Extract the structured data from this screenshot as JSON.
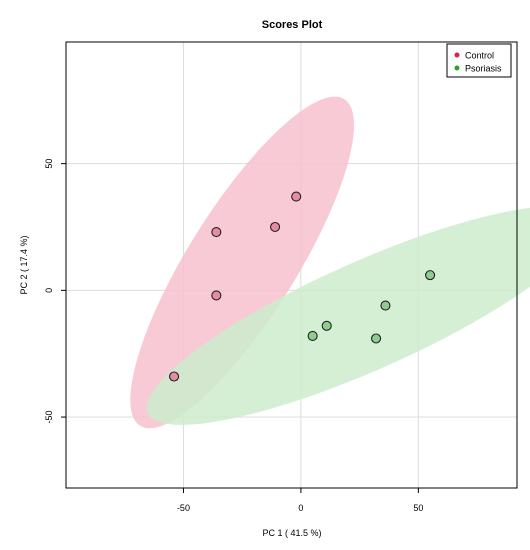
{
  "chart_data": {
    "type": "scatter",
    "title": "Scores Plot",
    "xlabel": "PC 1 ( 41.5 %)",
    "ylabel": "PC 2 ( 17.4 %)",
    "xlim": [
      -100,
      92
    ],
    "ylim": [
      -78,
      98
    ],
    "x_ticks": [
      -50,
      0,
      50
    ],
    "y_ticks": [
      -50,
      0,
      50
    ],
    "x_tick_labels": [
      "-50",
      "0",
      "50"
    ],
    "y_tick_labels": [
      "-50",
      "0",
      "50"
    ],
    "grid": true,
    "legend_position": "top-right",
    "series": [
      {
        "name": "Control",
        "color": "#e6194b",
        "point_fill": "#e58ca2",
        "ellipse_fill": "#f7c1ce",
        "points": [
          {
            "x": -2,
            "y": 37
          },
          {
            "x": -11,
            "y": 25
          },
          {
            "x": -36,
            "y": 23
          },
          {
            "x": -36,
            "y": -2
          },
          {
            "x": -54,
            "y": -34
          }
        ],
        "ellipse": {
          "cx": -25,
          "cy": 11,
          "rx": 82,
          "ry": 23,
          "angle_deg": 58
        }
      },
      {
        "name": "Psoriasis",
        "color": "#2ca02c",
        "point_fill": "#8fcc8f",
        "ellipse_fill": "#cdeccd",
        "points": [
          {
            "x": 55,
            "y": 6
          },
          {
            "x": 36,
            "y": -6
          },
          {
            "x": 11,
            "y": -14
          },
          {
            "x": 5,
            "y": -18
          },
          {
            "x": 32,
            "y": -19
          }
        ],
        "ellipse": {
          "cx": 28,
          "cy": -10,
          "rx": 102,
          "ry": 23,
          "angle_deg": 24
        }
      }
    ]
  }
}
